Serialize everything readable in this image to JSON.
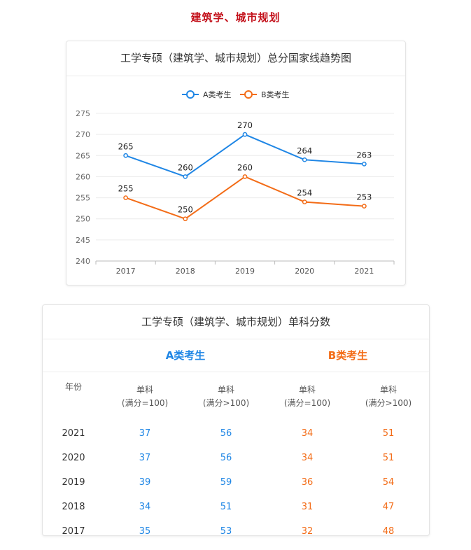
{
  "page_title": "建筑学、城市规划",
  "chart_data": {
    "type": "line",
    "title": "工学专硕（建筑学、城市规划）总分国家线趋势图",
    "categories": [
      "2017",
      "2018",
      "2019",
      "2020",
      "2021"
    ],
    "series": [
      {
        "name": "A类考生",
        "color": "#1f86e5",
        "values": [
          265,
          260,
          270,
          264,
          263
        ]
      },
      {
        "name": "B类考生",
        "color": "#f36c17",
        "values": [
          255,
          250,
          260,
          254,
          253
        ]
      }
    ],
    "ylim": [
      240,
      275
    ],
    "yticks": [
      240,
      245,
      250,
      255,
      260,
      265,
      270,
      275
    ],
    "legend_position": "top-center",
    "grid": true,
    "data_labels": true
  },
  "table": {
    "title": "工学专硕（建筑学、城市规划）单科分数",
    "group_a": "A类考生",
    "group_b": "B类考生",
    "year_header": "年份",
    "col_headers": [
      {
        "line1": "单科",
        "line2": "(满分=100)"
      },
      {
        "line1": "单科",
        "line2": "(满分>100)"
      },
      {
        "line1": "单科",
        "line2": "(满分=100)"
      },
      {
        "line1": "单科",
        "line2": "(满分>100)"
      }
    ],
    "rows": [
      {
        "year": "2021",
        "a1": "37",
        "a2": "56",
        "b1": "34",
        "b2": "51"
      },
      {
        "year": "2020",
        "a1": "37",
        "a2": "56",
        "b1": "34",
        "b2": "51"
      },
      {
        "year": "2019",
        "a1": "39",
        "a2": "59",
        "b1": "36",
        "b2": "54"
      },
      {
        "year": "2018",
        "a1": "34",
        "a2": "51",
        "b1": "31",
        "b2": "47"
      },
      {
        "year": "2017",
        "a1": "35",
        "a2": "53",
        "b1": "32",
        "b2": "48"
      }
    ]
  }
}
